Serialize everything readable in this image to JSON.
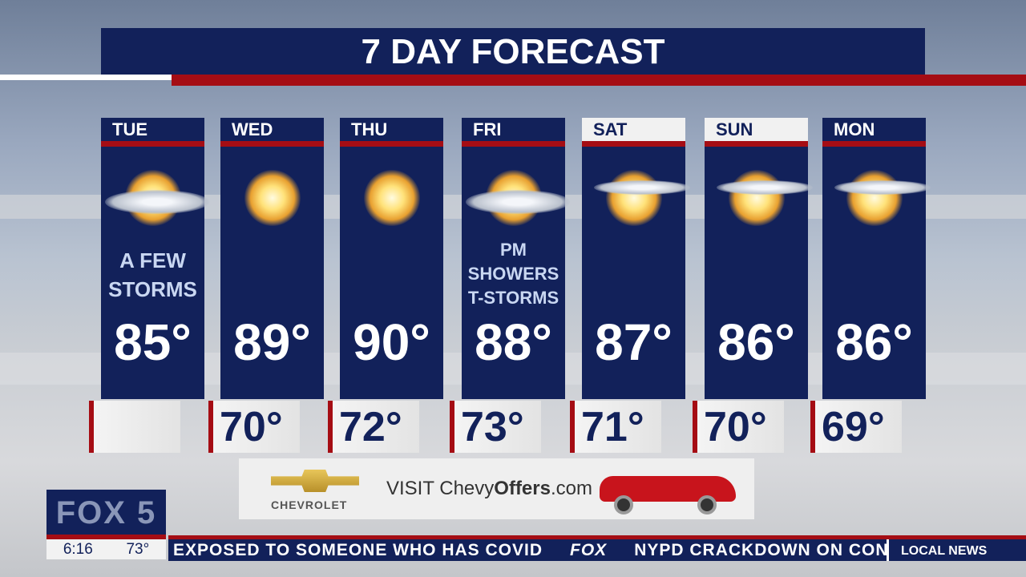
{
  "title": "7 DAY FORECAST",
  "days": [
    {
      "day": "TUE",
      "icon": "sun-cloud-storm-icon",
      "condition": [
        "A FEW",
        "STORMS"
      ],
      "high": "85°",
      "low": ""
    },
    {
      "day": "WED",
      "icon": "sun-icon",
      "condition": [],
      "high": "89°",
      "low": "70°"
    },
    {
      "day": "THU",
      "icon": "sun-icon",
      "condition": [],
      "high": "90°",
      "low": "72°"
    },
    {
      "day": "FRI",
      "icon": "sun-cloud-storm-icon",
      "condition": [
        "PM",
        "SHOWERS",
        "T-STORMS"
      ],
      "high": "88°",
      "low": "73°"
    },
    {
      "day": "SAT",
      "icon": "partly-sunny-icon",
      "condition": [],
      "high": "87°",
      "low": "71°"
    },
    {
      "day": "SUN",
      "icon": "partly-sunny-icon",
      "condition": [],
      "high": "86°",
      "low": "70°"
    },
    {
      "day": "MON",
      "icon": "partly-sunny-icon",
      "condition": [],
      "high": "86°",
      "low": "69°"
    }
  ],
  "ad": {
    "brand": "CHEVROLET",
    "visit": "VISIT",
    "site_a": "Chevy",
    "site_b": "Offers",
    "site_c": ".com"
  },
  "station": {
    "logo": "FOX 5",
    "time": "6:16",
    "temp": "73°"
  },
  "ticker": {
    "left": "EXPOSED TO SOMEONE WHO HAS COVID",
    "brand": "FOX",
    "right": "NYPD CRACKDOWN ON CON",
    "label": "LOCAL NEWS"
  },
  "colors": {
    "navy": "#12215a",
    "red": "#a50d14"
  }
}
